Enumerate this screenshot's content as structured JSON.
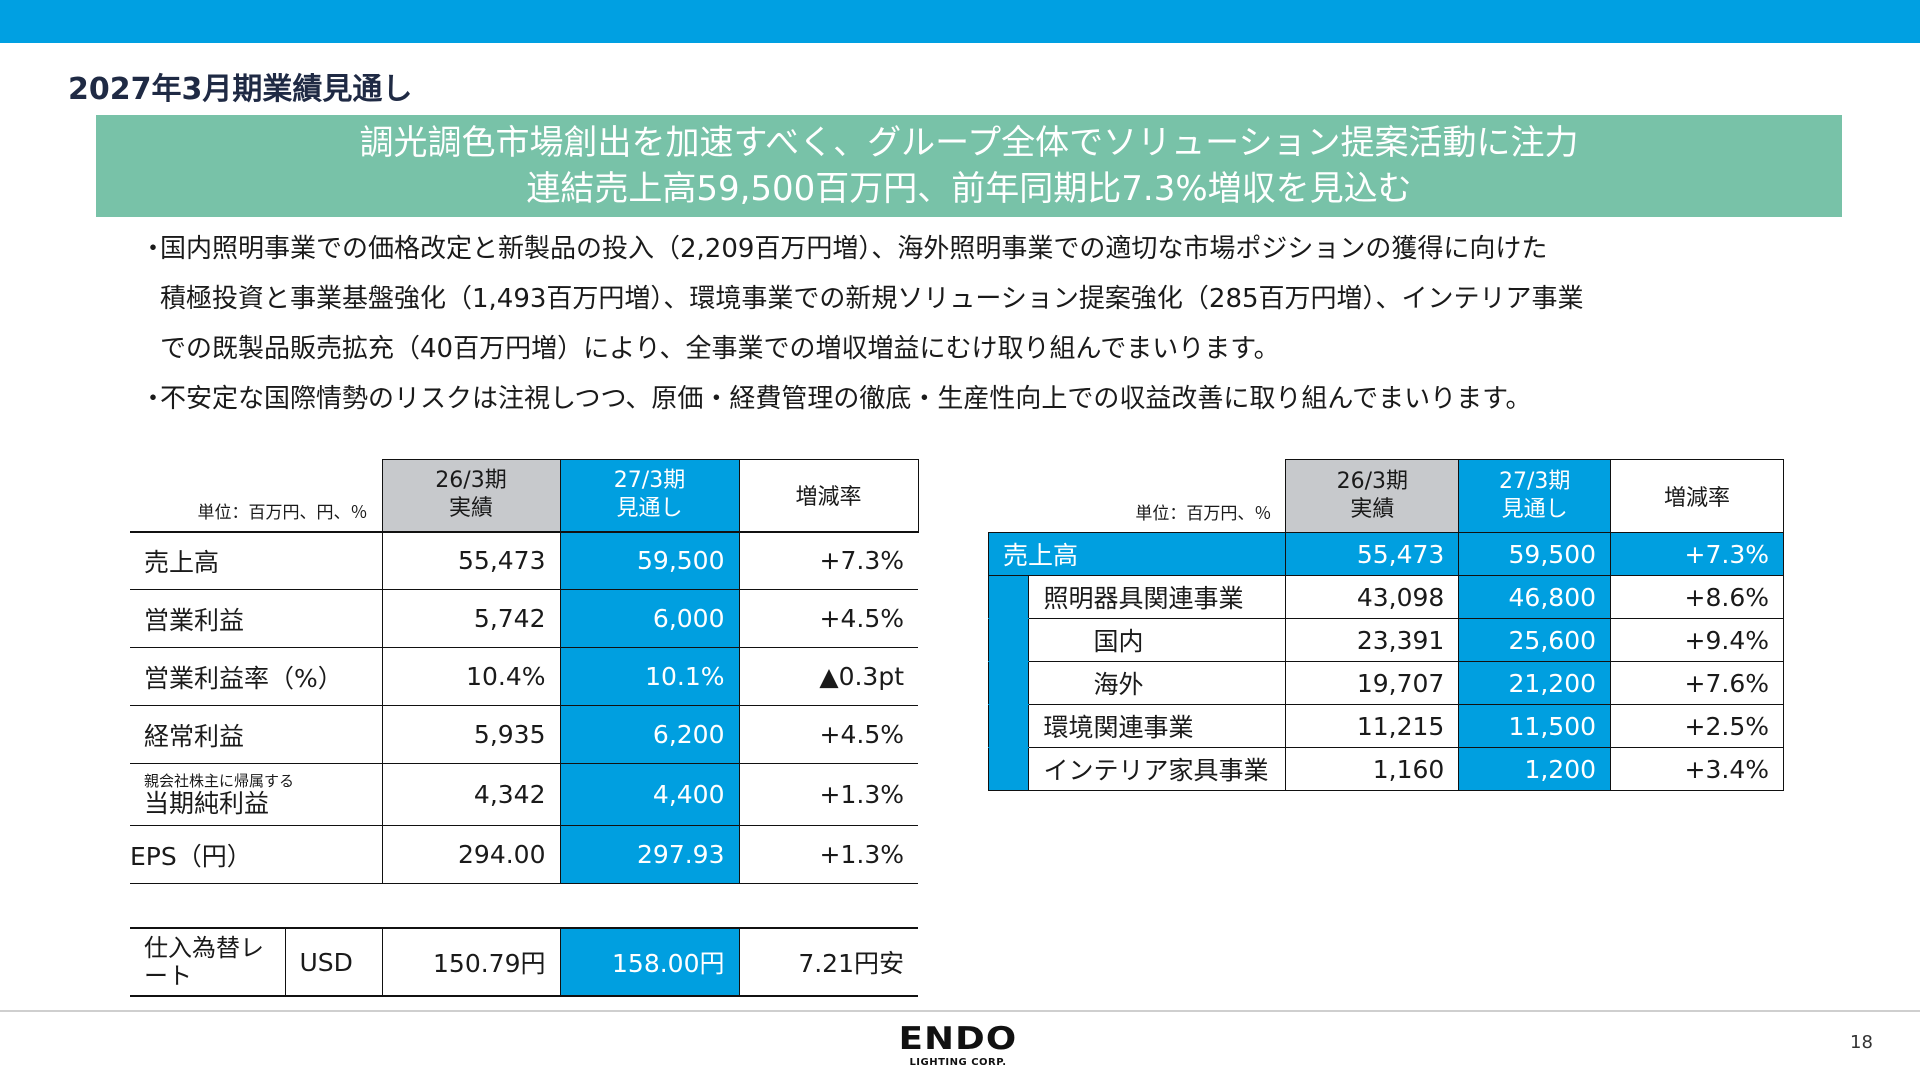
{
  "header": {
    "title": "2027年3月期業績見通し",
    "accent_color": "#00a0e2"
  },
  "banner": {
    "line1": "調光調色市場創出を加速すべく、グループ全体でソリューション提案活動に注力",
    "line2": "連結売上高59,500百万円、前年同期比7.3%増収を見込む",
    "color": "#78c2a8"
  },
  "bullets": [
    {
      "dot": "・",
      "lines": [
        "国内照明事業での価格改定と新製品の投入（2,209百万円増）、海外照明事業での適切な市場ポジションの獲得に向けた",
        "積極投資と事業基盤強化（1,493百万円増）、環境事業での新規ソリューション提案強化（285百万円増）、インテリア事業",
        "での既製品販売拡充（40百万円増）により、全事業での増収増益にむけ取り組んでまいります。"
      ]
    },
    {
      "dot": "・",
      "lines": [
        "不安定な国際情勢のリスクは注視しつつ、原価・経費管理の徹底・生産性向上での収益改善に取り組んでまいります。"
      ]
    }
  ],
  "left_table": {
    "unit": "単位：百万円、円、％",
    "col_a": [
      "26/3期",
      "実績"
    ],
    "col_b": [
      "27/3期",
      "見通し"
    ],
    "col_c": "増減率",
    "rows": [
      {
        "small": "",
        "label": "売上高",
        "a": "55,473",
        "b": "59,500",
        "c": "+7.3%"
      },
      {
        "small": "",
        "label": "営業利益",
        "a": "5,742",
        "b": "6,000",
        "c": "+4.5%"
      },
      {
        "small": "",
        "label": "営業利益率（%）",
        "a": "10.4%",
        "b": "10.1%",
        "c": "▲0.3pt"
      },
      {
        "small": "",
        "label": "経常利益",
        "a": "5,935",
        "b": "6,200",
        "c": "+4.5%"
      },
      {
        "small": "親会社株主に帰属する",
        "label": "当期純利益",
        "a": "4,342",
        "b": "4,400",
        "c": "+1.3%"
      },
      {
        "small": "",
        "label": "EPS（円）",
        "a": "294.00",
        "b": "297.93",
        "c": "+1.3%"
      }
    ]
  },
  "fx_table": {
    "label_line1": "仕入為替レ",
    "label_line2": "ート",
    "currency": "USD",
    "a": "150.79円",
    "b": "158.00円",
    "c": "7.21円安"
  },
  "right_table": {
    "unit": "単位：百万円、％",
    "col_a": [
      "26/3期",
      "実績"
    ],
    "col_b": [
      "27/3期",
      "見通し"
    ],
    "col_c": "増減率",
    "total": {
      "label": "売上高",
      "a": "55,473",
      "b": "59,500",
      "c": "+7.3%"
    },
    "rows": [
      {
        "label": "照明器具関連事業",
        "level": 1,
        "a": "43,098",
        "b": "46,800",
        "c": "+8.6%"
      },
      {
        "label": "国内",
        "level": 2,
        "a": "23,391",
        "b": "25,600",
        "c": "+9.4%"
      },
      {
        "label": "海外",
        "level": 2,
        "a": "19,707",
        "b": "21,200",
        "c": "+7.6%"
      },
      {
        "label": "環境関連事業",
        "level": 1,
        "a": "11,215",
        "b": "11,500",
        "c": "+2.5%"
      },
      {
        "label": "インテリア家具事業",
        "level": 1,
        "a": "1,160",
        "b": "1,200",
        "c": "+3.4%"
      }
    ]
  },
  "footer": {
    "logo_main": "ENDO",
    "logo_sub": "LIGHTING CORP.",
    "page_number": "18"
  }
}
